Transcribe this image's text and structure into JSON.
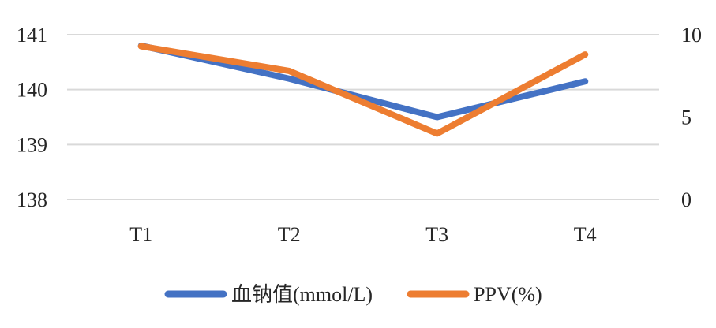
{
  "chart_data": {
    "type": "line",
    "categories": [
      "T1",
      "T2",
      "T3",
      "T4"
    ],
    "series": [
      {
        "name": "血钠值(mmol/L)",
        "axis": "left",
        "color": "#4472C4",
        "values": [
          140.8,
          140.2,
          139.5,
          140.15
        ]
      },
      {
        "name": "PPV(%)",
        "axis": "right",
        "color": "#ED7D31",
        "values": [
          9.3,
          7.8,
          4.0,
          8.8
        ]
      }
    ],
    "y_left": {
      "min": 138,
      "max": 141,
      "ticks": [
        "138",
        "139",
        "140",
        "141"
      ]
    },
    "y_right": {
      "min": 0,
      "max": 10,
      "ticks": [
        "0",
        "5",
        "10"
      ]
    },
    "grid": true,
    "legend_position": "bottom",
    "title": "",
    "xlabel": "",
    "ylabel": ""
  }
}
